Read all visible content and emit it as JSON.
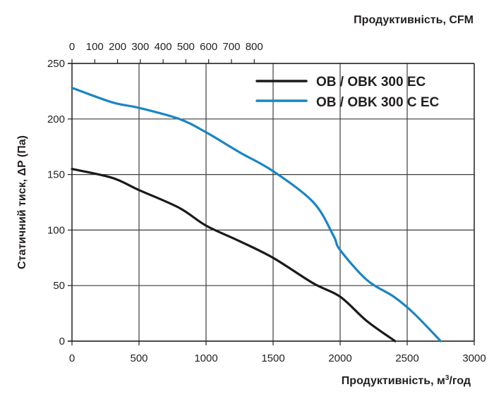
{
  "chart_data": {
    "type": "line",
    "title": "",
    "xlabel": "Продуктивність, м³/год",
    "xlabel_top": "Продуктивність, CFM",
    "ylabel": "Статичний тиск, ΔP (Па)",
    "xlim": [
      0,
      3000
    ],
    "ylim": [
      0,
      250
    ],
    "x_ticks": [
      0,
      500,
      1000,
      1500,
      2000,
      2500,
      3000
    ],
    "x_top_ticks": [
      0,
      100,
      200,
      300,
      400,
      500,
      600,
      700,
      800
    ],
    "y_ticks": [
      0,
      50,
      100,
      150,
      200,
      250
    ],
    "grid": true,
    "legend_position": "upper right",
    "series": [
      {
        "name": "OB / OBK 300 EC",
        "color": "#1a1a1a",
        "x": [
          0,
          300,
          500,
          800,
          1000,
          1250,
          1500,
          1800,
          2000,
          2200,
          2410
        ],
        "y": [
          155,
          147,
          136,
          120,
          104,
          90,
          75,
          52,
          40,
          18,
          0
        ]
      },
      {
        "name": "OB / OBK 300 C EC",
        "color": "#1a85c2",
        "x": [
          0,
          300,
          500,
          800,
          1000,
          1250,
          1500,
          1800,
          1950,
          2000,
          2200,
          2400,
          2550,
          2750
        ],
        "y": [
          228,
          215,
          210,
          200,
          188,
          170,
          153,
          125,
          95,
          82,
          55,
          40,
          25,
          0
        ]
      }
    ]
  },
  "labels": {
    "top_axis_title": "Продуктивність, CFM",
    "bottom_axis_title_main": "Продуктивність, м",
    "bottom_axis_title_sup": "3",
    "bottom_axis_title_end": "/год",
    "left_axis_title": "Статичний тиск, ΔP (Па)",
    "legend": [
      "OB / OBK 300 EC",
      "OB / OBK 300 C EC"
    ]
  }
}
